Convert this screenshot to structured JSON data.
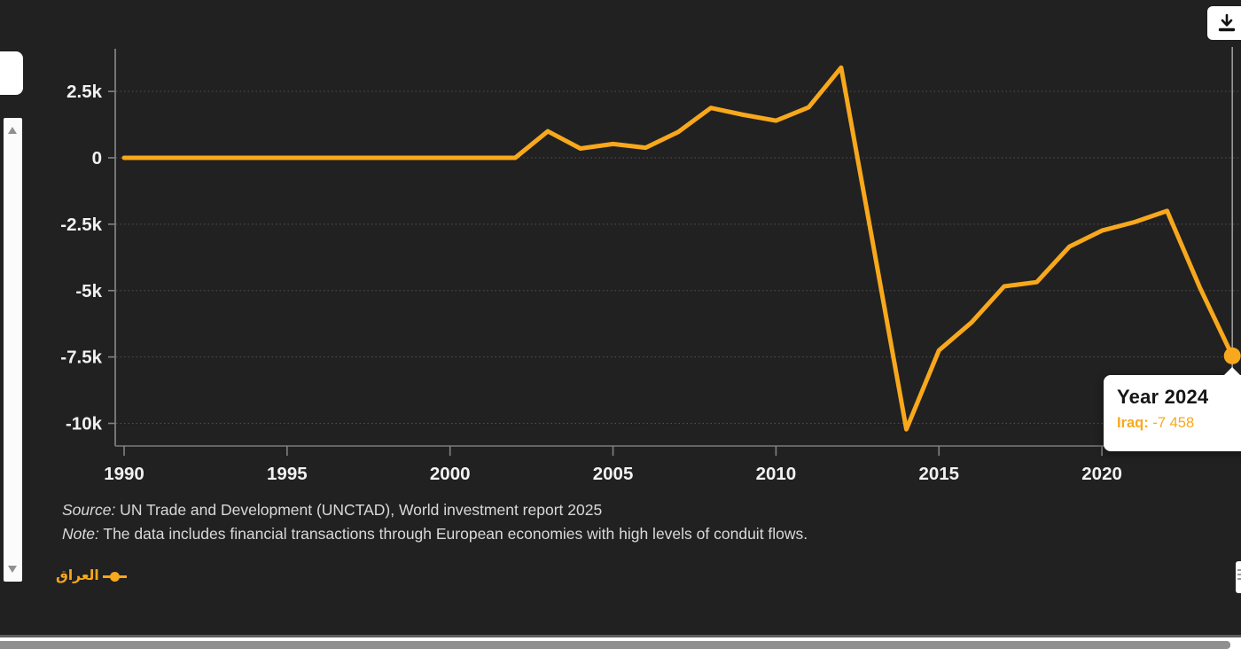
{
  "app": {
    "background_color": "#212121",
    "accent_color": "#F8A81C"
  },
  "toolbar": {
    "download_icon": "tray-arrow-down"
  },
  "chart_data": {
    "type": "line",
    "title": "",
    "xlabel": "",
    "ylabel": "",
    "xlim": [
      1990,
      2024
    ],
    "ylim": [
      -10700,
      3900
    ],
    "grid": "dotted horizontal gridlines",
    "legend_position": "bottom-left",
    "x_ticks": [
      1990,
      1995,
      2000,
      2005,
      2010,
      2015,
      2020
    ],
    "y_ticks": [
      {
        "label": "2.5k",
        "value": 2500
      },
      {
        "label": "0",
        "value": 0
      },
      {
        "label": "-2.5k",
        "value": -2500
      },
      {
        "label": "-5k",
        "value": -5000
      },
      {
        "label": "-7.5k",
        "value": -7500
      },
      {
        "label": "-10k",
        "value": -10000
      }
    ],
    "series": [
      {
        "name": "العراق",
        "color": "#F8A81C",
        "x": [
          1990,
          1991,
          1992,
          1993,
          1994,
          1995,
          1996,
          1997,
          1998,
          1999,
          2000,
          2001,
          2002,
          2003,
          2004,
          2005,
          2006,
          2007,
          2008,
          2009,
          2010,
          2011,
          2012,
          2013,
          2014,
          2015,
          2016,
          2017,
          2018,
          2019,
          2020,
          2021,
          2022,
          2023,
          2024
        ],
        "values": [
          0,
          0,
          0,
          0,
          0,
          0,
          0,
          0,
          0,
          0,
          0,
          0,
          0,
          1000,
          350,
          520,
          380,
          970,
          1880,
          1620,
          1400,
          1900,
          3400,
          -3400,
          -10225,
          -7250,
          -6200,
          -4840,
          -4680,
          -3350,
          -2740,
          -2420,
          -2000,
          -4870,
          -7458
        ]
      }
    ]
  },
  "highlight": {
    "year": 2024,
    "value": -7458
  },
  "tooltip": {
    "title": "Year 2024",
    "series_label": "Iraq:",
    "value": " -7 458"
  },
  "source_note": {
    "source_label": "Source:",
    "source_text": " UN Trade and Development (UNCTAD), World investment report 2025",
    "note_label": "Note:",
    "note_text": " The data includes financial transactions through European economies with high levels of conduit flows."
  },
  "legend": {
    "items": [
      {
        "label": "العراق",
        "color": "#F8A81C"
      }
    ]
  }
}
